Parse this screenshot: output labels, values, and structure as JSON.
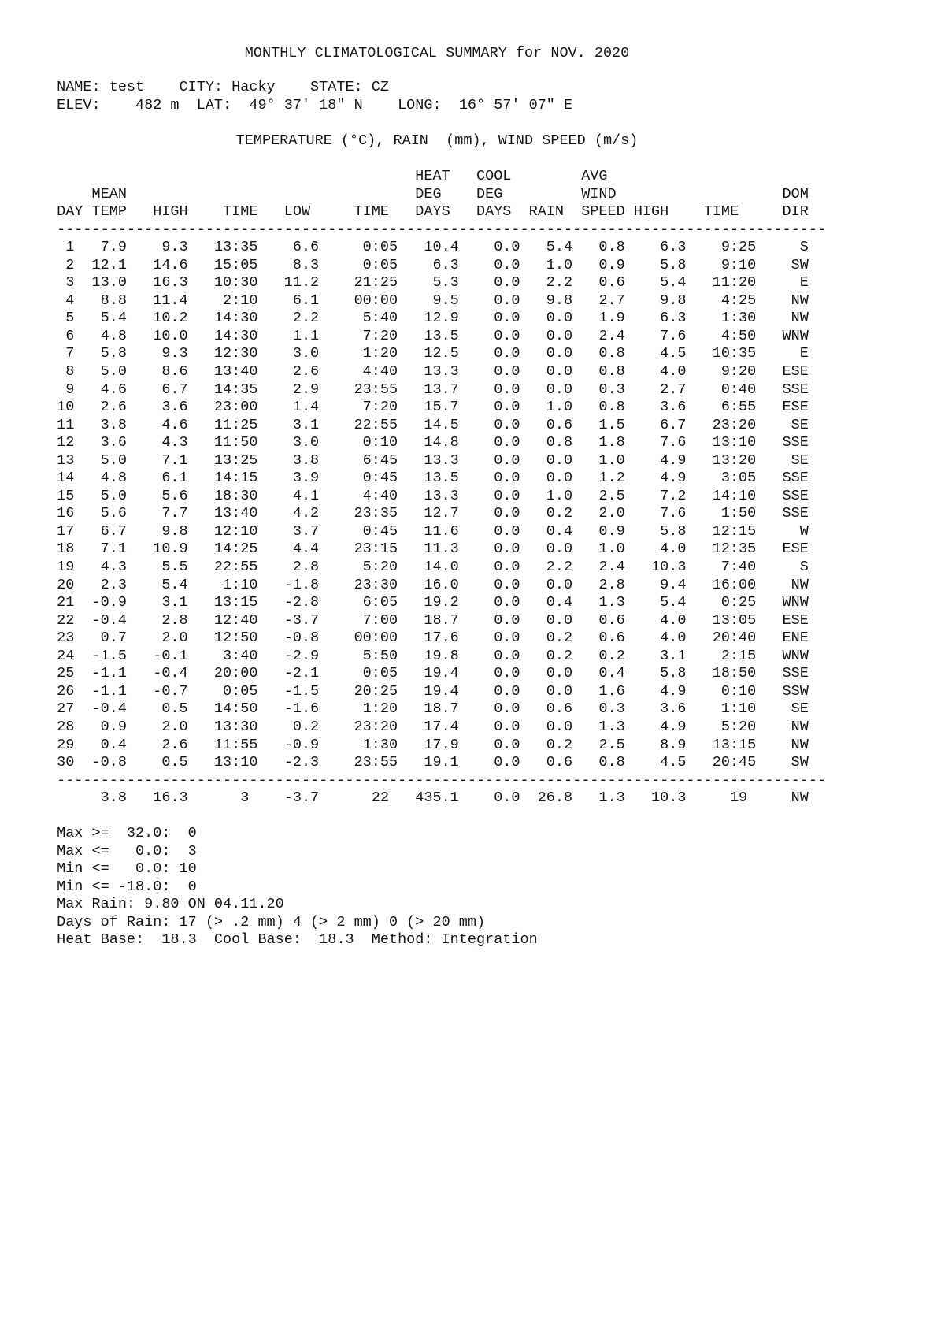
{
  "title": "MONTHLY CLIMATOLOGICAL SUMMARY for NOV. 2020",
  "station": {
    "name": "test",
    "city": "Hacky",
    "state": "CZ",
    "elevation": "482 m",
    "latitude": "49° 37' 18\" N",
    "longitude": "16° 57' 07\" E",
    "line1": " NAME: test    CITY: Hacky    STATE: CZ",
    "line2": " ELEV:    482 m  LAT:  49° 37' 18\" N    LONG:  16° 57' 07\" E"
  },
  "units_line": "TEMPERATURE (°C), RAIN  (mm), WIND SPEED (m/s)",
  "table": {
    "columns": [
      "DAY",
      "MEAN TEMP",
      "HIGH",
      "TIME",
      "LOW",
      "TIME",
      "HEAT DEG DAYS",
      "COOL DEG DAYS",
      "RAIN",
      "AVG WIND SPEED",
      "HIGH",
      "TIME",
      "DOM DIR"
    ],
    "header_lines": [
      "                                          HEAT   COOL        AVG",
      "     MEAN                                 DEG    DEG         WIND                   DOM",
      " DAY TEMP   HIGH    TIME   LOW     TIME   DAYS   DAYS  RAIN  SPEED HIGH    TIME     DIR"
    ],
    "divider": " ----------------------------------------------------------------------------------------",
    "rows": [
      [
        "1",
        "7.9",
        "9.3",
        "13:35",
        "6.6",
        "0:05",
        "10.4",
        "0.0",
        "5.4",
        "0.8",
        "6.3",
        "9:25",
        "S"
      ],
      [
        "2",
        "12.1",
        "14.6",
        "15:05",
        "8.3",
        "0:05",
        "6.3",
        "0.0",
        "1.0",
        "0.9",
        "5.8",
        "9:10",
        "SW"
      ],
      [
        "3",
        "13.0",
        "16.3",
        "10:30",
        "11.2",
        "21:25",
        "5.3",
        "0.0",
        "2.2",
        "0.6",
        "5.4",
        "11:20",
        "E"
      ],
      [
        "4",
        "8.8",
        "11.4",
        "2:10",
        "6.1",
        "00:00",
        "9.5",
        "0.0",
        "9.8",
        "2.7",
        "9.8",
        "4:25",
        "NW"
      ],
      [
        "5",
        "5.4",
        "10.2",
        "14:30",
        "2.2",
        "5:40",
        "12.9",
        "0.0",
        "0.0",
        "1.9",
        "6.3",
        "1:30",
        "NW"
      ],
      [
        "6",
        "4.8",
        "10.0",
        "14:30",
        "1.1",
        "7:20",
        "13.5",
        "0.0",
        "0.0",
        "2.4",
        "7.6",
        "4:50",
        "WNW"
      ],
      [
        "7",
        "5.8",
        "9.3",
        "12:30",
        "3.0",
        "1:20",
        "12.5",
        "0.0",
        "0.0",
        "0.8",
        "4.5",
        "10:35",
        "E"
      ],
      [
        "8",
        "5.0",
        "8.6",
        "13:40",
        "2.6",
        "4:40",
        "13.3",
        "0.0",
        "0.0",
        "0.8",
        "4.0",
        "9:20",
        "ESE"
      ],
      [
        "9",
        "4.6",
        "6.7",
        "14:35",
        "2.9",
        "23:55",
        "13.7",
        "0.0",
        "0.0",
        "0.3",
        "2.7",
        "0:40",
        "SSE"
      ],
      [
        "10",
        "2.6",
        "3.6",
        "23:00",
        "1.4",
        "7:20",
        "15.7",
        "0.0",
        "1.0",
        "0.8",
        "3.6",
        "6:55",
        "ESE"
      ],
      [
        "11",
        "3.8",
        "4.6",
        "11:25",
        "3.1",
        "22:55",
        "14.5",
        "0.0",
        "0.6",
        "1.5",
        "6.7",
        "23:20",
        "SE"
      ],
      [
        "12",
        "3.6",
        "4.3",
        "11:50",
        "3.0",
        "0:10",
        "14.8",
        "0.0",
        "0.8",
        "1.8",
        "7.6",
        "13:10",
        "SSE"
      ],
      [
        "13",
        "5.0",
        "7.1",
        "13:25",
        "3.8",
        "6:45",
        "13.3",
        "0.0",
        "0.0",
        "1.0",
        "4.9",
        "13:20",
        "SE"
      ],
      [
        "14",
        "4.8",
        "6.1",
        "14:15",
        "3.9",
        "0:45",
        "13.5",
        "0.0",
        "0.0",
        "1.2",
        "4.9",
        "3:05",
        "SSE"
      ],
      [
        "15",
        "5.0",
        "5.6",
        "18:30",
        "4.1",
        "4:40",
        "13.3",
        "0.0",
        "1.0",
        "2.5",
        "7.2",
        "14:10",
        "SSE"
      ],
      [
        "16",
        "5.6",
        "7.7",
        "13:40",
        "4.2",
        "23:35",
        "12.7",
        "0.0",
        "0.2",
        "2.0",
        "7.6",
        "1:50",
        "SSE"
      ],
      [
        "17",
        "6.7",
        "9.8",
        "12:10",
        "3.7",
        "0:45",
        "11.6",
        "0.0",
        "0.4",
        "0.9",
        "5.8",
        "12:15",
        "W"
      ],
      [
        "18",
        "7.1",
        "10.9",
        "14:25",
        "4.4",
        "23:15",
        "11.3",
        "0.0",
        "0.0",
        "1.0",
        "4.0",
        "12:35",
        "ESE"
      ],
      [
        "19",
        "4.3",
        "5.5",
        "22:55",
        "2.8",
        "5:20",
        "14.0",
        "0.0",
        "2.2",
        "2.4",
        "10.3",
        "7:40",
        "S"
      ],
      [
        "20",
        "2.3",
        "5.4",
        "1:10",
        "-1.8",
        "23:30",
        "16.0",
        "0.0",
        "0.0",
        "2.8",
        "9.4",
        "16:00",
        "NW"
      ],
      [
        "21",
        "-0.9",
        "3.1",
        "13:15",
        "-2.8",
        "6:05",
        "19.2",
        "0.0",
        "0.4",
        "1.3",
        "5.4",
        "0:25",
        "WNW"
      ],
      [
        "22",
        "-0.4",
        "2.8",
        "12:40",
        "-3.7",
        "7:00",
        "18.7",
        "0.0",
        "0.0",
        "0.6",
        "4.0",
        "13:05",
        "ESE"
      ],
      [
        "23",
        "0.7",
        "2.0",
        "12:50",
        "-0.8",
        "00:00",
        "17.6",
        "0.0",
        "0.2",
        "0.6",
        "4.0",
        "20:40",
        "ENE"
      ],
      [
        "24",
        "-1.5",
        "-0.1",
        "3:40",
        "-2.9",
        "5:50",
        "19.8",
        "0.0",
        "0.2",
        "0.2",
        "3.1",
        "2:15",
        "WNW"
      ],
      [
        "25",
        "-1.1",
        "-0.4",
        "20:00",
        "-2.1",
        "0:05",
        "19.4",
        "0.0",
        "0.0",
        "0.4",
        "5.8",
        "18:50",
        "SSE"
      ],
      [
        "26",
        "-1.1",
        "-0.7",
        "0:05",
        "-1.5",
        "20:25",
        "19.4",
        "0.0",
        "0.0",
        "1.6",
        "4.9",
        "0:10",
        "SSW"
      ],
      [
        "27",
        "-0.4",
        "0.5",
        "14:50",
        "-1.6",
        "1:20",
        "18.7",
        "0.0",
        "0.6",
        "0.3",
        "3.6",
        "1:10",
        "SE"
      ],
      [
        "28",
        "0.9",
        "2.0",
        "13:30",
        "0.2",
        "23:20",
        "17.4",
        "0.0",
        "0.0",
        "1.3",
        "4.9",
        "5:20",
        "NW"
      ],
      [
        "29",
        "0.4",
        "2.6",
        "11:55",
        "-0.9",
        "1:30",
        "17.9",
        "0.0",
        "0.2",
        "2.5",
        "8.9",
        "13:15",
        "NW"
      ],
      [
        "30",
        "-0.8",
        "0.5",
        "13:10",
        "-2.3",
        "23:55",
        "19.1",
        "0.0",
        "0.6",
        "0.8",
        "4.5",
        "20:45",
        "SW"
      ]
    ],
    "summary": [
      "",
      "3.8",
      "16.3",
      "3",
      "-3.7",
      "22",
      "435.1",
      "0.0",
      "26.8",
      "1.3",
      "10.3",
      "19",
      "NW"
    ]
  },
  "footer": {
    "lines": [
      " Max >=  32.0:  0",
      " Max <=   0.0:  3",
      " Min <=   0.0: 10",
      " Min <= -18.0:  0",
      " Max Rain: 9.80 ON 04.11.20",
      " Days of Rain: 17 (> .2 mm) 4 (> 2 mm) 0 (> 20 mm)",
      " Heat Base:  18.3  Cool Base:  18.3  Method: Integration"
    ],
    "max_ge_32_count": "0",
    "max_le_0_count": "3",
    "min_le_0_count": "10",
    "min_le_minus18_count": "0",
    "max_rain": "9.80",
    "max_rain_date": "04.11.20",
    "days_of_rain_gt_02mm": "17",
    "days_of_rain_gt_2mm": "4",
    "days_of_rain_gt_20mm": "0",
    "heat_base": "18.3",
    "cool_base": "18.3",
    "method": "Integration"
  },
  "colors": {
    "text": "#161616",
    "background": "#ffffff"
  }
}
